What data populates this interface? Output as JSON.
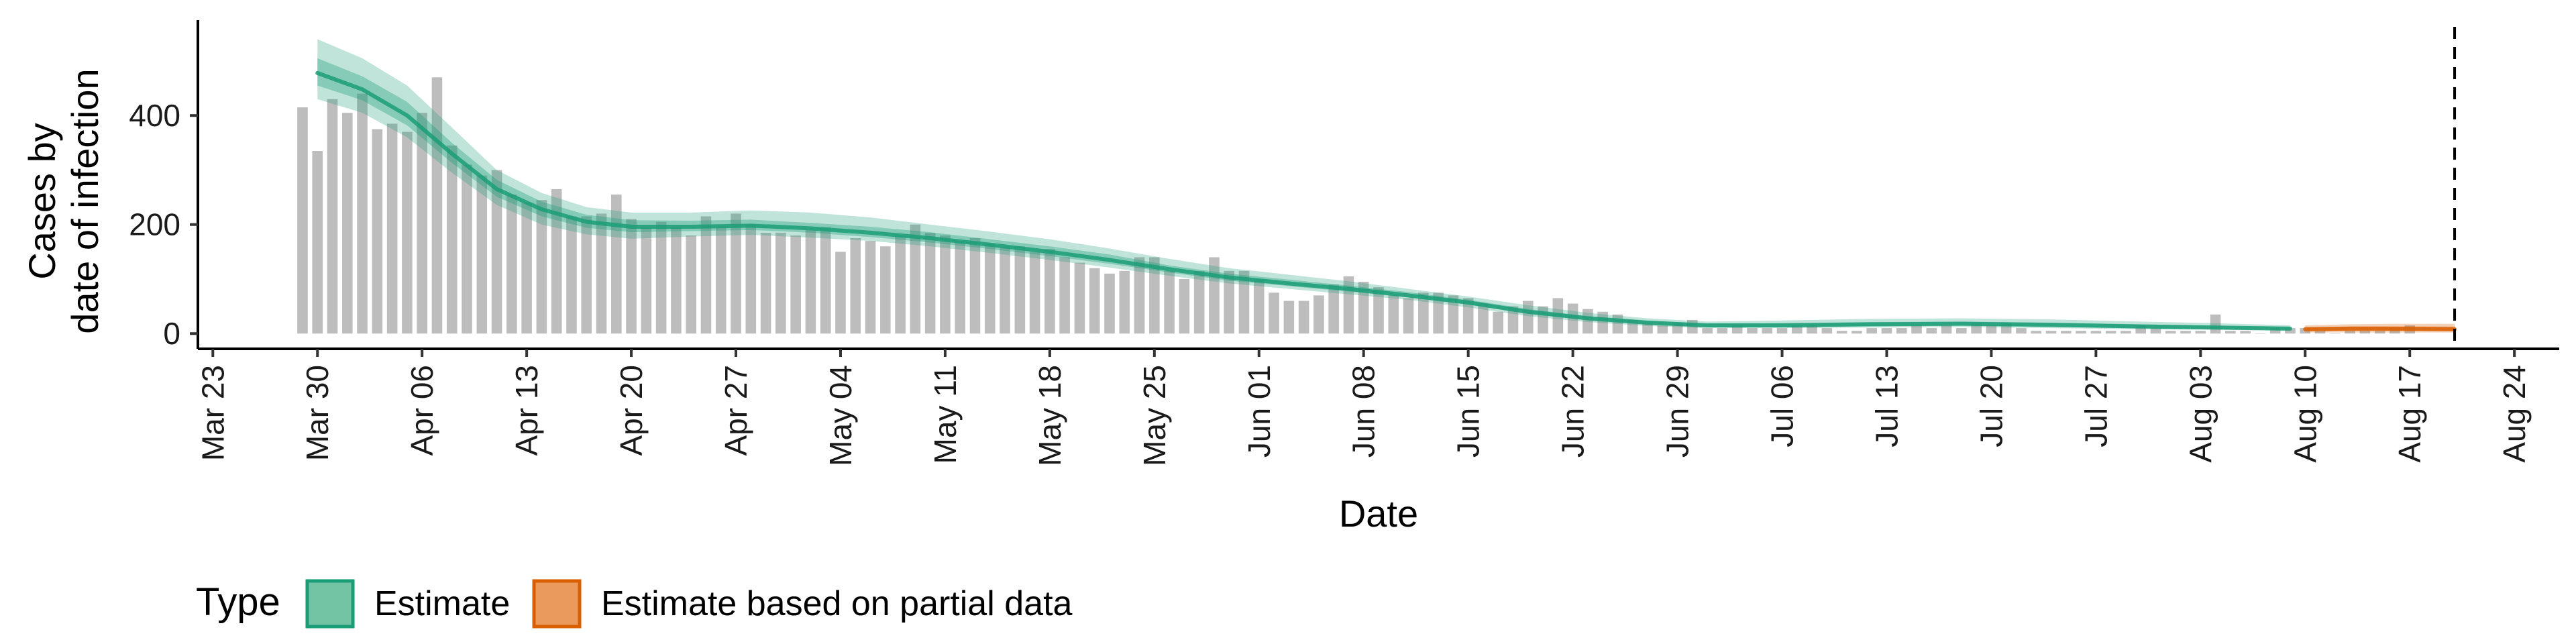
{
  "chart_data": {
    "type": "bar",
    "xlabel": "Date",
    "ylabel_lines": [
      "Cases by",
      "date of infection"
    ],
    "yticks": [
      0,
      200,
      400
    ],
    "ylim": [
      -28,
      575
    ],
    "xlim": [
      "2020-03-22",
      "2020-08-27"
    ],
    "xticks": [
      "2020-03-23",
      "2020-03-30",
      "2020-04-06",
      "2020-04-13",
      "2020-04-20",
      "2020-04-27",
      "2020-05-04",
      "2020-05-11",
      "2020-05-18",
      "2020-05-25",
      "2020-06-01",
      "2020-06-08",
      "2020-06-15",
      "2020-06-22",
      "2020-06-29",
      "2020-07-06",
      "2020-07-13",
      "2020-07-20",
      "2020-07-27",
      "2020-08-03",
      "2020-08-10",
      "2020-08-17",
      "2020-08-24"
    ],
    "xtick_labels": [
      "Mar 23",
      "Mar 30",
      "Apr 06",
      "Apr 13",
      "Apr 20",
      "Apr 27",
      "May 04",
      "May 11",
      "May 18",
      "May 25",
      "Jun 01",
      "Jun 08",
      "Jun 15",
      "Jun 22",
      "Jun 29",
      "Jul 06",
      "Jul 13",
      "Jul 20",
      "Jul 27",
      "Aug 03",
      "Aug 10",
      "Aug 17",
      "Aug 24"
    ],
    "bar_start_date": "2020-03-29",
    "bar_values": [
      415,
      335,
      430,
      405,
      440,
      375,
      385,
      370,
      405,
      470,
      345,
      310,
      290,
      300,
      255,
      240,
      245,
      265,
      215,
      215,
      220,
      255,
      210,
      195,
      205,
      195,
      180,
      215,
      195,
      220,
      200,
      185,
      185,
      180,
      190,
      195,
      150,
      175,
      170,
      160,
      180,
      200,
      185,
      180,
      170,
      175,
      165,
      160,
      160,
      150,
      155,
      140,
      130,
      120,
      110,
      115,
      140,
      140,
      115,
      100,
      115,
      140,
      115,
      115,
      100,
      75,
      60,
      60,
      70,
      90,
      105,
      95,
      85,
      70,
      65,
      75,
      75,
      70,
      65,
      55,
      40,
      50,
      60,
      50,
      65,
      55,
      45,
      40,
      35,
      25,
      20,
      15,
      20,
      25,
      10,
      10,
      15,
      10,
      10,
      10,
      15,
      15,
      10,
      5,
      5,
      10,
      10,
      10,
      15,
      10,
      15,
      10,
      20,
      15,
      20,
      10,
      5,
      5,
      5,
      5,
      5,
      5,
      5,
      15,
      10,
      5,
      5,
      5,
      35,
      5,
      5,
      0,
      10,
      10,
      10,
      5,
      0,
      5,
      5,
      5,
      10,
      15
    ],
    "vertical_dashed_line": "2020-08-20",
    "series": [
      {
        "name": "Estimate",
        "color": "#1b9e77",
        "dates": [
          "2020-03-30",
          "2020-04-02",
          "2020-04-05",
          "2020-04-08",
          "2020-04-11",
          "2020-04-14",
          "2020-04-17",
          "2020-04-20",
          "2020-04-24",
          "2020-04-28",
          "2020-05-02",
          "2020-05-06",
          "2020-05-10",
          "2020-05-14",
          "2020-05-18",
          "2020-05-22",
          "2020-05-26",
          "2020-05-30",
          "2020-06-03",
          "2020-06-07",
          "2020-06-11",
          "2020-06-15",
          "2020-06-19",
          "2020-06-23",
          "2020-06-27",
          "2020-07-01",
          "2020-07-06",
          "2020-07-12",
          "2020-07-18",
          "2020-07-24",
          "2020-07-30",
          "2020-08-04",
          "2020-08-09"
        ],
        "median": [
          478,
          448,
          400,
          330,
          265,
          228,
          205,
          196,
          196,
          198,
          193,
          185,
          175,
          163,
          150,
          135,
          118,
          103,
          92,
          82,
          70,
          57,
          40,
          28,
          20,
          15,
          15,
          17,
          18,
          16,
          13,
          11,
          9
        ],
        "ci_outer_low": [
          430,
          405,
          360,
          295,
          236,
          200,
          182,
          174,
          178,
          181,
          176,
          170,
          160,
          148,
          135,
          121,
          106,
          92,
          82,
          72,
          62,
          48,
          32,
          21,
          14,
          10,
          10,
          11,
          12,
          10,
          8,
          7,
          5
        ],
        "ci_outer_high": [
          540,
          505,
          455,
          378,
          300,
          258,
          232,
          222,
          222,
          226,
          222,
          213,
          200,
          187,
          173,
          156,
          137,
          120,
          108,
          96,
          82,
          68,
          52,
          38,
          28,
          22,
          24,
          27,
          28,
          26,
          22,
          19,
          15
        ],
        "ci_inner_low": [
          455,
          428,
          382,
          313,
          251,
          215,
          194,
          186,
          188,
          190,
          185,
          177,
          167,
          155,
          142,
          128,
          112,
          97,
          87,
          77,
          66,
          53,
          36,
          25,
          17,
          12,
          12,
          14,
          15,
          13,
          10,
          9,
          7
        ],
        "ci_inner_high": [
          505,
          472,
          425,
          350,
          282,
          242,
          218,
          208,
          207,
          209,
          203,
          196,
          186,
          173,
          160,
          145,
          125,
          110,
          99,
          88,
          76,
          62,
          45,
          32,
          24,
          18,
          19,
          21,
          22,
          20,
          17,
          14,
          11
        ]
      },
      {
        "name": "Estimate based on partial data",
        "color": "#d95f02",
        "dates": [
          "2020-08-10",
          "2020-08-13",
          "2020-08-16",
          "2020-08-20"
        ],
        "median": [
          8,
          9,
          9,
          8
        ],
        "ci_outer_low": [
          2,
          2,
          2,
          2
        ],
        "ci_outer_high": [
          15,
          17,
          18,
          18
        ],
        "ci_inner_low": [
          5,
          5,
          5,
          5
        ],
        "ci_inner_high": [
          11,
          13,
          13,
          13
        ]
      }
    ]
  },
  "legend": {
    "title": "Type",
    "items": [
      {
        "label": "Estimate",
        "fill": "#73c3a5",
        "stroke": "#1b9e77"
      },
      {
        "label": "Estimate based on partial data",
        "fill": "#eb9a5e",
        "stroke": "#d95f02"
      }
    ]
  }
}
